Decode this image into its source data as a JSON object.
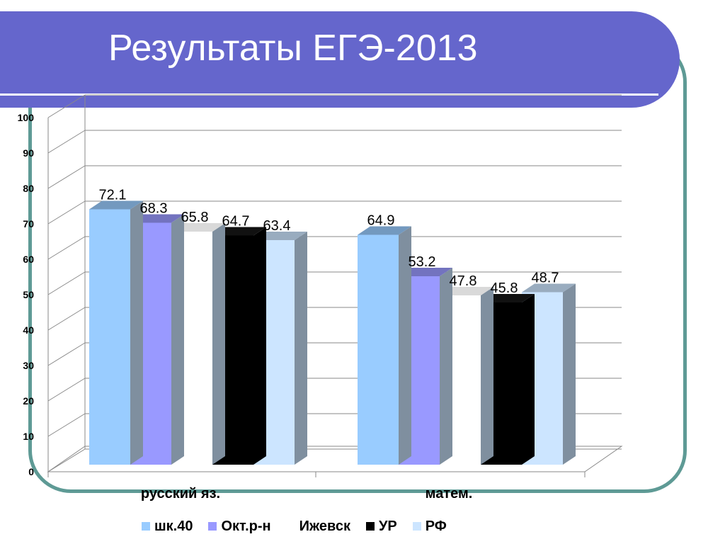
{
  "slide": {
    "title": "Результаты ЕГЭ-2013",
    "colors": {
      "title_bar": "#6566cc",
      "frame": "#5e9a95"
    }
  },
  "chart_data": {
    "type": "bar",
    "title": "",
    "xlabel": "",
    "ylabel": "",
    "ylim": [
      0,
      100
    ],
    "yticks": [
      "0",
      "10",
      "20",
      "30",
      "40",
      "50",
      "60",
      "70",
      "80",
      "90",
      "100"
    ],
    "grid": true,
    "legend_position": "bottom",
    "categories": [
      "русский яз.",
      "матем."
    ],
    "series": [
      {
        "name": "шк.40",
        "values": [
          72.1,
          64.9
        ],
        "labels": [
          "72.1",
          "64.9"
        ],
        "color": "#99ccff"
      },
      {
        "name": "Окт.р-н",
        "values": [
          68.3,
          53.2
        ],
        "labels": [
          "68.3",
          "53.2"
        ],
        "color": "#9999ff"
      },
      {
        "name": "Ижевск",
        "values": [
          65.8,
          47.8
        ],
        "labels": [
          "65.8",
          "47.8"
        ],
        "color": "#ffffff"
      },
      {
        "name": "УР",
        "values": [
          64.7,
          45.8
        ],
        "labels": [
          "64.7",
          "45.8"
        ],
        "color": "#000000"
      },
      {
        "name": "РФ",
        "values": [
          63.4,
          48.7
        ],
        "labels": [
          "63.4",
          "48.7"
        ],
        "color": "#cce5ff"
      }
    ]
  }
}
